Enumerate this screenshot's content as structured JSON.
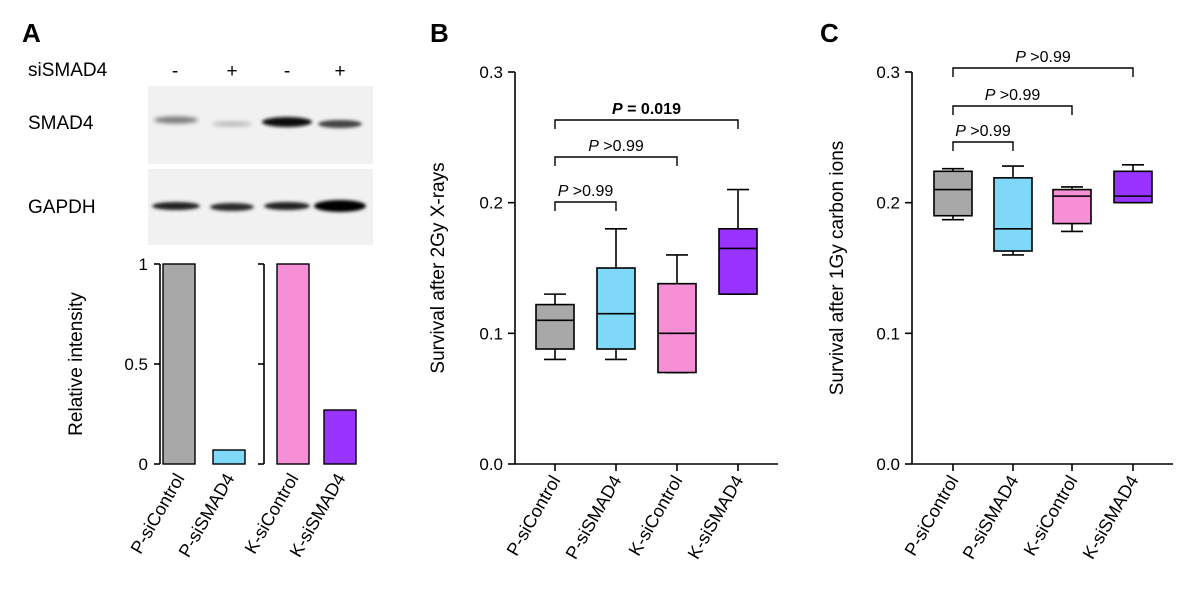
{
  "panels": {
    "a": "A",
    "b": "B",
    "c": "C"
  },
  "blot": {
    "treatment_label": "siSMAD4",
    "lane_signs": [
      "-",
      "+",
      "-",
      "+"
    ],
    "band_labels": [
      "SMAD4",
      "GAPDH"
    ]
  },
  "colors": {
    "gray": "#a8a8a8",
    "blue": "#7fd8f8",
    "pink": "#f78fd6",
    "purple": "#9933ff"
  },
  "chart_data": [
    {
      "id": "A",
      "type": "bar",
      "ylabel": "Relative intensity",
      "ylim": [
        0,
        1
      ],
      "yticks": [
        0,
        0.5,
        1
      ],
      "ytick_labels": [
        "0",
        "0.5",
        "1"
      ],
      "groups": [
        {
          "categories": [
            "P-siControl",
            "P-siSMAD4"
          ],
          "values": [
            1.0,
            0.07
          ]
        },
        {
          "categories": [
            "K-siControl",
            "K-siSMAD4"
          ],
          "values": [
            1.0,
            0.27
          ]
        }
      ],
      "colors": [
        "gray",
        "blue",
        "pink",
        "purple"
      ]
    },
    {
      "id": "B",
      "type": "box",
      "ylabel": "Survival after 2Gy X-rays",
      "ylim": [
        0.0,
        0.3
      ],
      "yticks": [
        0.0,
        0.1,
        0.2,
        0.3
      ],
      "ytick_labels": [
        "0.0",
        "0.1",
        "0.2",
        "0.3"
      ],
      "categories": [
        "P-siControl",
        "P-siSMAD4",
        "K-siControl",
        "K-siSMAD4"
      ],
      "colors": [
        "gray",
        "blue",
        "pink",
        "purple"
      ],
      "boxes": [
        {
          "min": 0.08,
          "q1": 0.088,
          "median": 0.11,
          "q3": 0.122,
          "max": 0.13
        },
        {
          "min": 0.08,
          "q1": 0.088,
          "median": 0.115,
          "q3": 0.15,
          "max": 0.18
        },
        {
          "min": 0.07,
          "q1": 0.07,
          "median": 0.1,
          "q3": 0.138,
          "max": 0.16
        },
        {
          "min": 0.13,
          "q1": 0.13,
          "median": 0.165,
          "q3": 0.18,
          "max": 0.21
        }
      ],
      "comparisons": [
        {
          "from": 0,
          "to": 1,
          "label": "P >0.99",
          "bold": false
        },
        {
          "from": 0,
          "to": 2,
          "label": "P >0.99",
          "bold": false
        },
        {
          "from": 0,
          "to": 3,
          "label": "P = 0.019",
          "bold": true
        }
      ]
    },
    {
      "id": "C",
      "type": "box",
      "ylabel": "Survival after 1Gy carbon ions",
      "ylim": [
        0.0,
        0.3
      ],
      "yticks": [
        0.0,
        0.1,
        0.2,
        0.3
      ],
      "ytick_labels": [
        "0.0",
        "0.1",
        "0.2",
        "0.3"
      ],
      "categories": [
        "P-siControl",
        "P-siSMAD4",
        "K-siControl",
        "K-siSMAD4"
      ],
      "colors": [
        "gray",
        "blue",
        "pink",
        "purple"
      ],
      "boxes": [
        {
          "min": 0.187,
          "q1": 0.19,
          "median": 0.21,
          "q3": 0.224,
          "max": 0.226
        },
        {
          "min": 0.16,
          "q1": 0.163,
          "median": 0.18,
          "q3": 0.219,
          "max": 0.228
        },
        {
          "min": 0.178,
          "q1": 0.184,
          "median": 0.205,
          "q3": 0.21,
          "max": 0.212
        },
        {
          "min": 0.2,
          "q1": 0.2,
          "median": 0.205,
          "q3": 0.224,
          "max": 0.229
        }
      ],
      "comparisons": [
        {
          "from": 0,
          "to": 1,
          "label": "P >0.99",
          "bold": false
        },
        {
          "from": 0,
          "to": 2,
          "label": "P >0.99",
          "bold": false
        },
        {
          "from": 0,
          "to": 3,
          "label": "P >0.99",
          "bold": false
        }
      ]
    }
  ]
}
